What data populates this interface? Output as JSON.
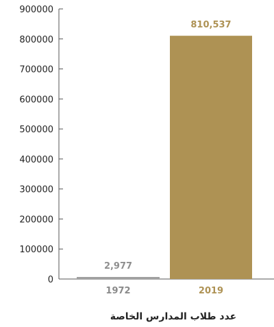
{
  "chart_data": {
    "type": "bar",
    "categories": [
      "1972",
      "2019"
    ],
    "values": [
      2977,
      810537
    ],
    "data_labels": [
      "2,977",
      "810,537"
    ],
    "ylim": [
      0,
      900000
    ],
    "yticks": [
      "0",
      "100000",
      "200000",
      "300000",
      "400000",
      "500000",
      "600000",
      "700000",
      "800000",
      "900000"
    ],
    "xlabel": "عدد طلاب المدارس الخاصة",
    "ylabel": "",
    "title": "",
    "grid": false,
    "colors": {
      "bar_1972": "#a0a0a0",
      "bar_2019": "#ae9254",
      "label_1972": "#8f8f8f",
      "label_2019": "#ae9254",
      "axis": "#555555"
    }
  }
}
